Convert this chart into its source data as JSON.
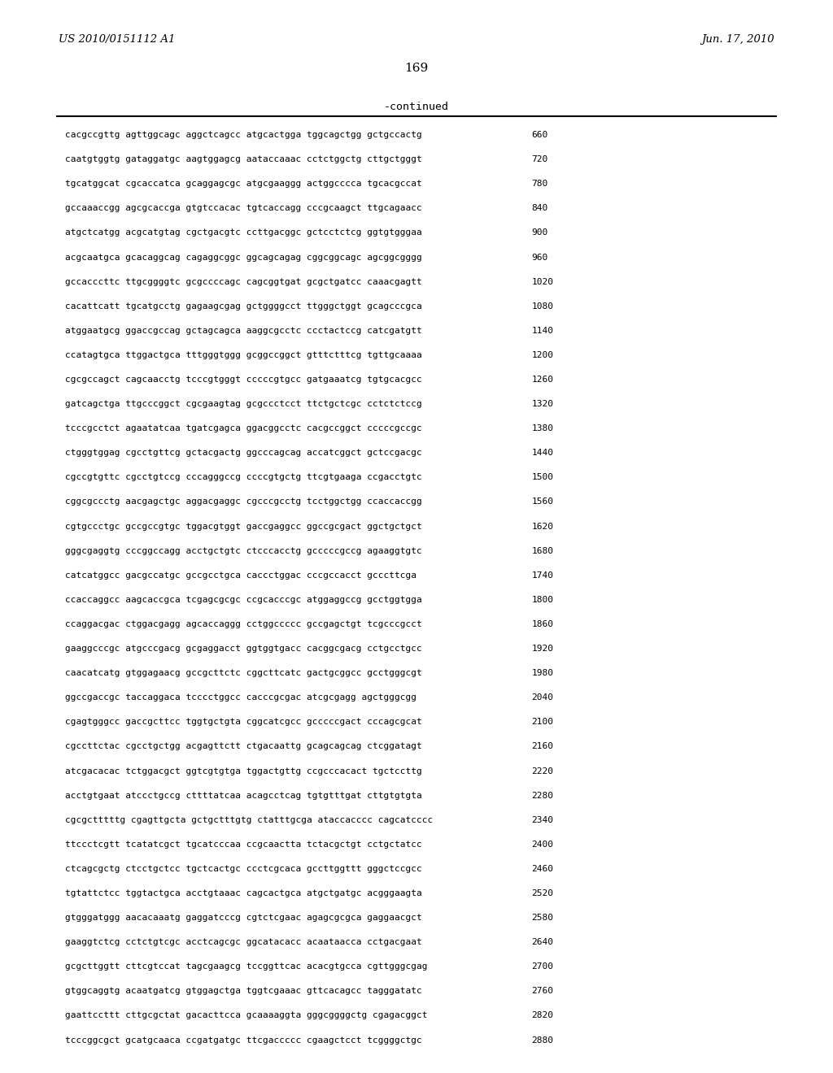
{
  "patent_left": "US 2010/0151112 A1",
  "patent_right": "Jun. 17, 2010",
  "page_number": "169",
  "continued_label": "-continued",
  "background_color": "#ffffff",
  "text_color": "#000000",
  "sequence_lines": [
    [
      "cacgccgttg agttggcagc aggctcagcc atgcactgga tggcagctgg gctgccactg",
      "660"
    ],
    [
      "caatgtggtg gataggatgc aagtggagcg aataccaaac cctctggctg cttgctgggt",
      "720"
    ],
    [
      "tgcatggcat cgcaccatca gcaggagcgc atgcgaaggg actggcccca tgcacgccat",
      "780"
    ],
    [
      "gccaaaccgg agcgcaccga gtgtccacac tgtcaccagg cccgcaagct ttgcagaacc",
      "840"
    ],
    [
      "atgctcatgg acgcatgtag cgctgacgtc ccttgacggc gctcctctcg ggtgtgggaa",
      "900"
    ],
    [
      "acgcaatgca gcacaggcag cagaggcggc ggcagcagag cggcggcagc agcggcgggg",
      "960"
    ],
    [
      "gccacccttc ttgcggggtc gcgccccagc cagcggtgat gcgctgatcc caaacgagtt",
      "1020"
    ],
    [
      "cacattcatt tgcatgcctg gagaagcgag gctggggcct ttgggctggt gcagcccgca",
      "1080"
    ],
    [
      "atggaatgcg ggaccgccag gctagcagca aaggcgcctc ccctactccg catcgatgtt",
      "1140"
    ],
    [
      "ccatagtgca ttggactgca tttgggtggg gcggccggct gtttctttcg tgttgcaaaa",
      "1200"
    ],
    [
      "cgcgccagct cagcaacctg tcccgtgggt cccccgtgcc gatgaaatcg tgtgcacgcc",
      "1260"
    ],
    [
      "gatcagctga ttgcccggct cgcgaagtag gcgccctcct ttctgctcgc cctctctccg",
      "1320"
    ],
    [
      "tcccgcctct agaatatcaa tgatcgagca ggacggcctc cacgccggct cccccgccgc",
      "1380"
    ],
    [
      "ctgggtggag cgcctgttcg gctacgactg ggcccagcag accatcggct gctccgacgc",
      "1440"
    ],
    [
      "cgccgtgttc cgcctgtccg cccagggccg ccccgtgctg ttcgtgaaga ccgacctgtc",
      "1500"
    ],
    [
      "cggcgccctg aacgagctgc aggacgaggc cgcccgcctg tcctggctgg ccaccaccgg",
      "1560"
    ],
    [
      "cgtgccctgc gccgccgtgc tggacgtggt gaccgaggcc ggccgcgact ggctgctgct",
      "1620"
    ],
    [
      "gggcgaggtg cccggccagg acctgctgtc ctcccacctg gcccccgccg agaaggtgtc",
      "1680"
    ],
    [
      "catcatggcc gacgccatgc gccgcctgca caccctggac cccgccacct gcccttcga",
      "1740"
    ],
    [
      "ccaccaggcc aagcaccgca tcgagcgcgc ccgcacccgc atggaggccg gcctggtgga",
      "1800"
    ],
    [
      "ccaggacgac ctggacgagg agcaccaggg cctggccccc gccgagctgt tcgcccgcct",
      "1860"
    ],
    [
      "gaaggcccgc atgcccgacg gcgaggacct ggtggtgacc cacggcgacg cctgcctgcc",
      "1920"
    ],
    [
      "caacatcatg gtggagaacg gccgcttctc cggcttcatc gactgcggcc gcctgggcgt",
      "1980"
    ],
    [
      "ggccgaccgc taccaggaca tcccctggcc cacccgcgac atcgcgagg agctgggcgg",
      "2040"
    ],
    [
      "cgagtgggcc gaccgcttcc tggtgctgta cggcatcgcc gcccccgact cccagcgcat",
      "2100"
    ],
    [
      "cgccttctac cgcctgctgg acgagttctt ctgacaattg gcagcagcag ctcggatagt",
      "2160"
    ],
    [
      "atcgacacac tctggacgct ggtcgtgtga tggactgttg ccgcccacact tgctccttg",
      "2220"
    ],
    [
      "acctgtgaat atccctgccg cttttatcaa acagcctcag tgtgtttgat cttgtgtgta",
      "2280"
    ],
    [
      "cgcgctttttg cgagttgcta gctgctttgtg ctatttgcga ataccacccc cagcatcccc",
      "2340"
    ],
    [
      "ttccctcgtt tcatatcgct tgcatcccaa ccgcaactta tctacgctgt cctgctatcc",
      "2400"
    ],
    [
      "ctcagcgctg ctcctgctcc tgctcactgc ccctcgcaca gccttggttt gggctccgcc",
      "2460"
    ],
    [
      "tgtattctcc tggtactgca acctgtaaac cagcactgca atgctgatgc acgggaagta",
      "2520"
    ],
    [
      "gtgggatggg aacacaaatg gaggatcccg cgtctcgaac agagcgcgca gaggaacgct",
      "2580"
    ],
    [
      "gaaggtctcg cctctgtcgc acctcagcgc ggcatacacc acaataacca cctgacgaat",
      "2640"
    ],
    [
      "gcgcttggtt cttcgtccat tagcgaagcg tccggttcac acacgtgcca cgttgggcgag",
      "2700"
    ],
    [
      "gtggcaggtg acaatgatcg gtggagctga tggtcgaaac gttcacagcc tagggatatc",
      "2760"
    ],
    [
      "gaattccttt cttgcgctat gacacttcca gcaaaaggta gggcggggctg cgagacggct",
      "2820"
    ],
    [
      "tcccggcgct gcatgcaaca ccgatgatgc ttcgaccccc cgaagctcct tcggggctgc",
      "2880"
    ]
  ]
}
